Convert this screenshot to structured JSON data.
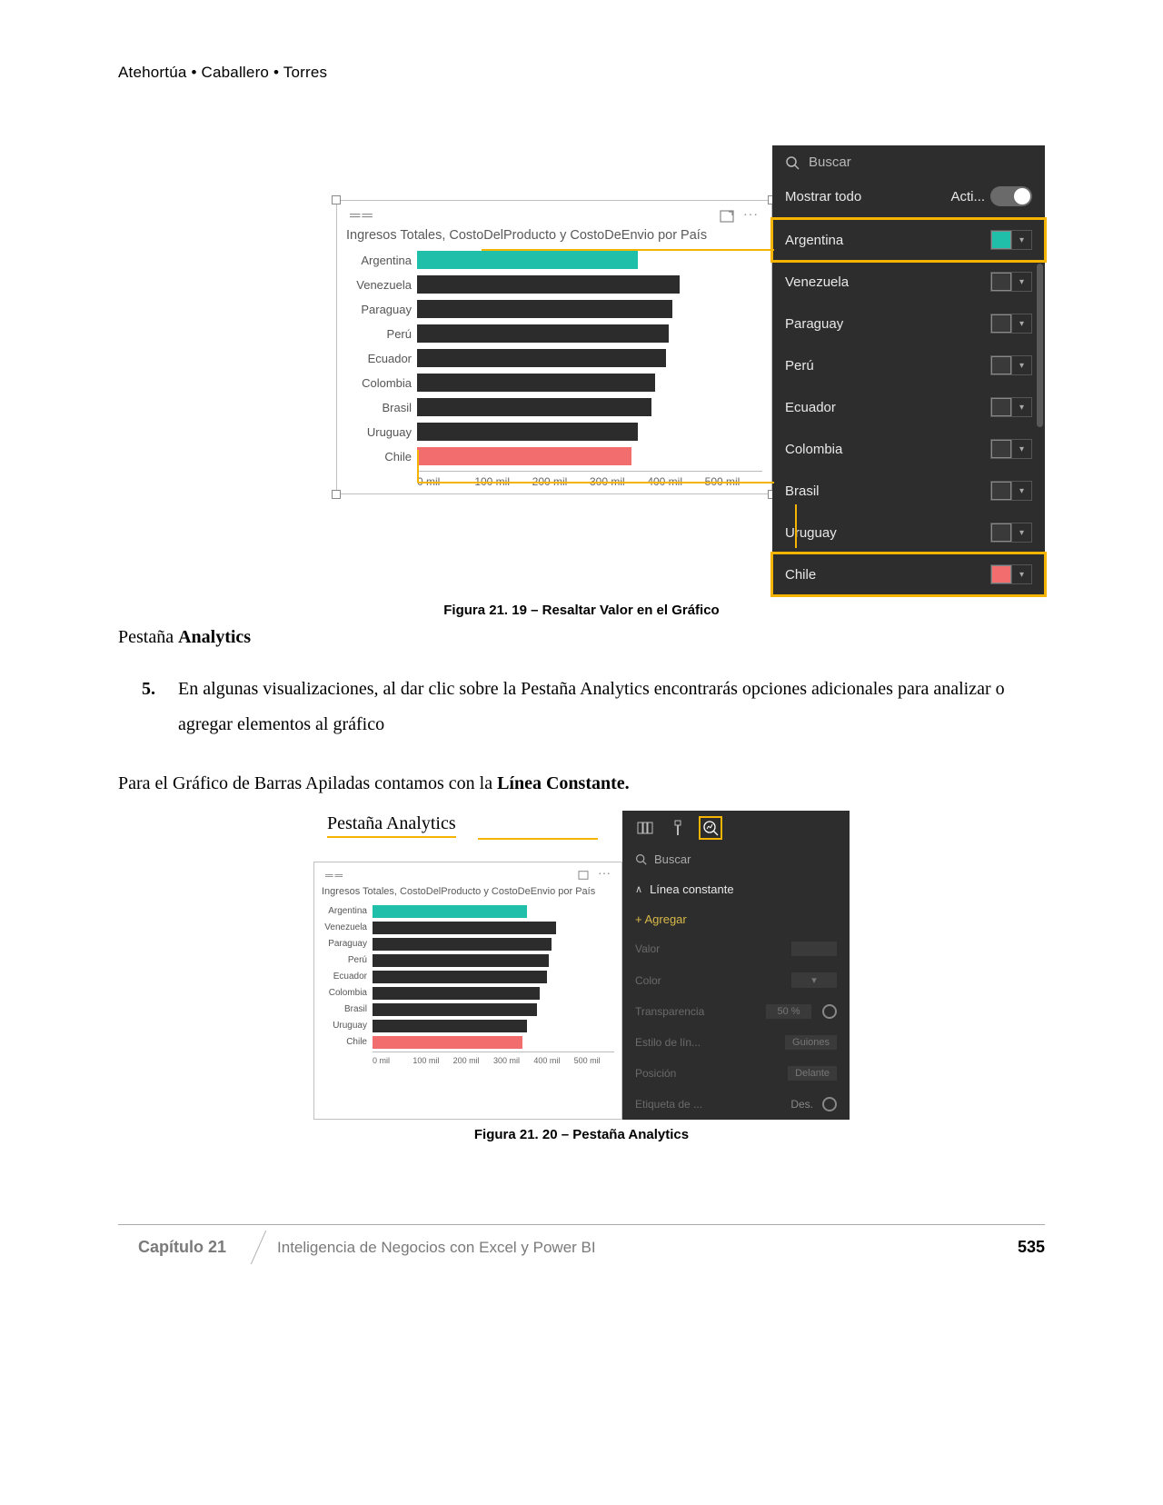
{
  "header": {
    "authors": "Atehortúa • Caballero • Torres"
  },
  "figure1": {
    "chart": {
      "title": "Ingresos Totales, CostoDelProducto y CostoDeEnvio por País",
      "max_value": 500,
      "x_ticks": [
        "0 mil",
        "100 mil",
        "200 mil",
        "300 mil",
        "400 mil",
        "500 mil"
      ],
      "bars": [
        {
          "label": "Argentina",
          "value": 320,
          "color": "#1fbfa9"
        },
        {
          "label": "Venezuela",
          "value": 380,
          "color": "#2c2c2c"
        },
        {
          "label": "Paraguay",
          "value": 370,
          "color": "#2c2c2c"
        },
        {
          "label": "Perú",
          "value": 365,
          "color": "#2c2c2c"
        },
        {
          "label": "Ecuador",
          "value": 360,
          "color": "#2c2c2c"
        },
        {
          "label": "Colombia",
          "value": 345,
          "color": "#2c2c2c"
        },
        {
          "label": "Brasil",
          "value": 340,
          "color": "#2c2c2c"
        },
        {
          "label": "Uruguay",
          "value": 320,
          "color": "#2c2c2c"
        },
        {
          "label": "Chile",
          "value": 310,
          "color": "#f26d6d"
        }
      ]
    },
    "panel": {
      "search_placeholder": "Buscar",
      "show_all_label": "Mostrar todo",
      "toggle_label": "Acti...",
      "toggle_on": true,
      "items": [
        {
          "label": "Argentina",
          "color": "#1fbfa9",
          "highlighted": true
        },
        {
          "label": "Venezuela",
          "color": "#3a3a3a",
          "highlighted": false
        },
        {
          "label": "Paraguay",
          "color": "#3a3a3a",
          "highlighted": false
        },
        {
          "label": "Perú",
          "color": "#3a3a3a",
          "highlighted": false
        },
        {
          "label": "Ecuador",
          "color": "#3a3a3a",
          "highlighted": false
        },
        {
          "label": "Colombia",
          "color": "#3a3a3a",
          "highlighted": false
        },
        {
          "label": "Brasil",
          "color": "#3a3a3a",
          "highlighted": false
        },
        {
          "label": "Uruguay",
          "color": "#3a3a3a",
          "highlighted": false
        },
        {
          "label": "Chile",
          "color": "#f26d6d",
          "highlighted": true
        }
      ]
    },
    "caption": "Figura 21. 19 – Resaltar Valor en el Gráfico"
  },
  "body": {
    "section_prefix": "Pestaña ",
    "section_bold": "Analytics",
    "step_number": "5.",
    "step_text": "En algunas visualizaciones, al dar clic sobre la Pestaña Analytics encontrarás opciones adicionales para analizar o agregar elementos al gráfico",
    "line2_prefix": "Para el Gráfico de Barras Apiladas contamos con la ",
    "line2_bold": "Línea Constante."
  },
  "figure2": {
    "annotation": "Pestaña Analytics",
    "chart": {
      "title": "Ingresos Totales, CostoDelProducto y CostoDeEnvio por País",
      "max_value": 500,
      "x_ticks": [
        "0 mil",
        "100 mil",
        "200 mil",
        "300 mil",
        "400 mil",
        "500 mil"
      ],
      "bars": [
        {
          "label": "Argentina",
          "value": 320,
          "color": "#1fbfa9"
        },
        {
          "label": "Venezuela",
          "value": 380,
          "color": "#2c2c2c"
        },
        {
          "label": "Paraguay",
          "value": 370,
          "color": "#2c2c2c"
        },
        {
          "label": "Perú",
          "value": 365,
          "color": "#2c2c2c"
        },
        {
          "label": "Ecuador",
          "value": 360,
          "color": "#2c2c2c"
        },
        {
          "label": "Colombia",
          "value": 345,
          "color": "#2c2c2c"
        },
        {
          "label": "Brasil",
          "value": 340,
          "color": "#2c2c2c"
        },
        {
          "label": "Uruguay",
          "value": 320,
          "color": "#2c2c2c"
        },
        {
          "label": "Chile",
          "value": 310,
          "color": "#f26d6d"
        }
      ]
    },
    "panel": {
      "search_placeholder": "Buscar",
      "section_label": "Línea constante",
      "add_label": "+ Agregar",
      "options": [
        {
          "label": "Valor",
          "value": ""
        },
        {
          "label": "Color",
          "value": "▾"
        },
        {
          "label": "Transparencia",
          "value": "50 %"
        },
        {
          "label": "Estilo de lín...",
          "value": "Guiones"
        },
        {
          "label": "Posición",
          "value": "Delante"
        },
        {
          "label": "Etiqueta de ...",
          "value": "Des."
        }
      ]
    },
    "caption": "Figura 21. 20 – Pestaña Analytics"
  },
  "footer": {
    "chapter": "Capítulo 21",
    "title": "Inteligencia de Negocios con Excel y Power BI",
    "page": "535"
  },
  "colors": {
    "highlight": "#f5b400",
    "teal": "#1fbfa9",
    "salmon": "#f26d6d",
    "dark_bar": "#2c2c2c",
    "panel_bg": "#2d2d2d"
  }
}
